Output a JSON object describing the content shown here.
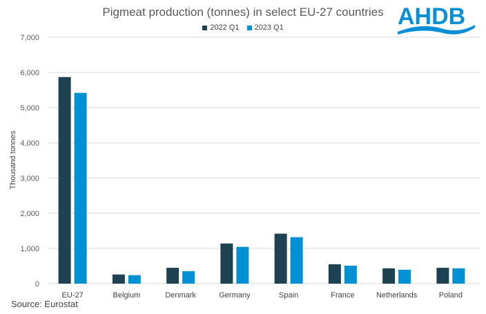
{
  "chart_data": {
    "type": "bar",
    "title": "Pigmeat production (tonnes) in select EU-27 countries",
    "ylabel": "Thousand tonnes",
    "xlabel": "",
    "ylim": [
      0,
      7000
    ],
    "yticks": [
      "0",
      "1,000",
      "2,000",
      "3,000",
      "4,000",
      "5,000",
      "6,000",
      "7,000"
    ],
    "grid": true,
    "legend_position": "top",
    "categories": [
      "EU-27",
      "Belgium",
      "Denmark",
      "Germany",
      "Spain",
      "France",
      "Netherlands",
      "Poland"
    ],
    "series": [
      {
        "name": "2022 Q1",
        "color": "#1f4252",
        "values": [
          5870,
          260,
          450,
          1140,
          1420,
          550,
          435,
          450
        ]
      },
      {
        "name": "2023 Q1",
        "color": "#0090d4",
        "values": [
          5420,
          240,
          355,
          1045,
          1320,
          510,
          395,
          435
        ]
      }
    ]
  },
  "source": "Source: Eurostat",
  "logo": {
    "text": "AHDB",
    "color": "#0a8fd6"
  }
}
